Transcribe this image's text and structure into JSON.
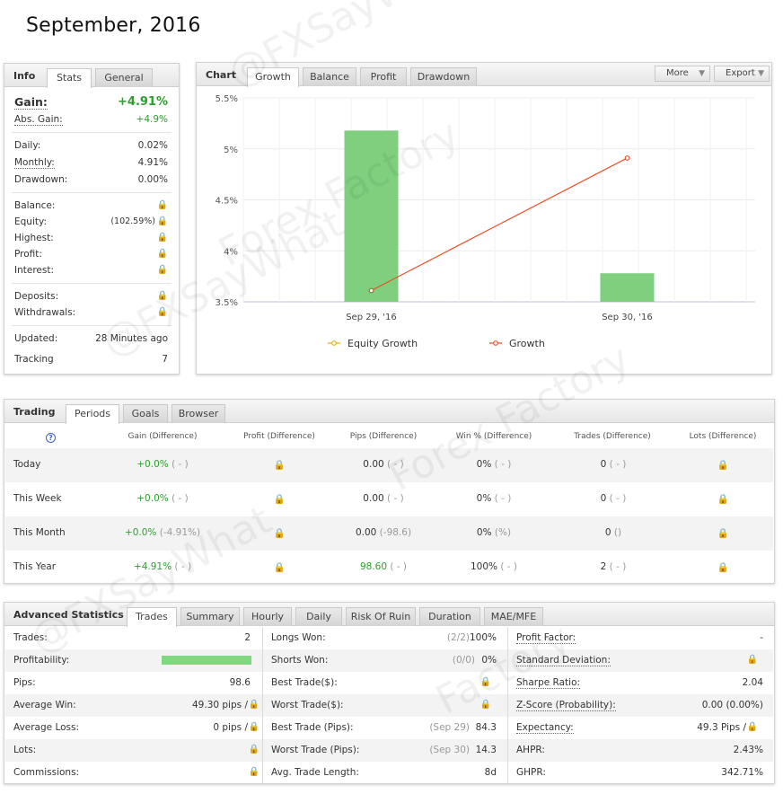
{
  "page_title": "September, 2016",
  "info": {
    "title": "Info",
    "tabs": [
      "Stats",
      "General"
    ],
    "gain_label": "Gain:",
    "gain_value": "+4.91%",
    "abs_gain_label": "Abs. Gain:",
    "abs_gain_value": "+4.9%",
    "daily_label": "Daily:",
    "daily_value": "0.02%",
    "monthly_label": "Monthly:",
    "monthly_value": "4.91%",
    "drawdown_label": "Drawdown:",
    "drawdown_value": "0.00%",
    "balance_label": "Balance:",
    "equity_label": "Equity:",
    "equity_value": "(102.59%)",
    "highest_label": "Highest:",
    "profit_label": "Profit:",
    "interest_label": "Interest:",
    "deposits_label": "Deposits:",
    "withdrawals_label": "Withdrawals:",
    "updated_label": "Updated:",
    "updated_value": "28 Minutes ago",
    "tracking_label": "Tracking",
    "tracking_value": "7"
  },
  "chart_panel": {
    "title": "Chart",
    "tabs": [
      "Growth",
      "Balance",
      "Profit",
      "Drawdown"
    ],
    "more_label": "More",
    "export_label": "Export"
  },
  "chart_data": {
    "type": "bar",
    "categories": [
      "Sep 29, '16",
      "Sep 30, '16"
    ],
    "series": [
      {
        "name": "Equity Growth",
        "type": "bar",
        "values": [
          5.18,
          3.78
        ],
        "color": "#7fcf7f"
      },
      {
        "name": "Growth",
        "type": "line",
        "values": [
          3.61,
          4.91
        ],
        "color": "#e8502a"
      }
    ],
    "y_ticks": [
      "3.5%",
      "4%",
      "4.5%",
      "5%",
      "5.5%"
    ],
    "y_tick_values": [
      3.5,
      4,
      4.5,
      5,
      5.5
    ],
    "ylim": [
      3.5,
      5.5
    ],
    "grid": true,
    "legend_position": "bottom"
  },
  "trading": {
    "title": "Trading",
    "tabs": [
      "Periods",
      "Goals",
      "Browser"
    ],
    "help_icon": "?",
    "headers": [
      "Gain (Difference)",
      "Profit (Difference)",
      "Pips (Difference)",
      "Win % (Difference)",
      "Trades (Difference)",
      "Lots (Difference)"
    ],
    "rows": [
      {
        "period": "Today",
        "gain": "+0.0%",
        "gain_diff": "( - )",
        "pips": "0.00",
        "pips_diff": "( - )",
        "win": "0%",
        "win_diff": "( - )",
        "trades": "0",
        "trades_diff": "( - )"
      },
      {
        "period": "This Week",
        "gain": "+0.0%",
        "gain_diff": "( - )",
        "pips": "0.00",
        "pips_diff": "( - )",
        "win": "0%",
        "win_diff": "( - )",
        "trades": "0",
        "trades_diff": "( - )"
      },
      {
        "period": "This Month",
        "gain": "+0.0%",
        "gain_diff": "(-4.91%)",
        "pips": "0.00",
        "pips_diff": "(-98.6)",
        "win": "0%",
        "win_diff": "(%)",
        "trades": "0",
        "trades_diff": "()"
      },
      {
        "period": "This Year",
        "gain": "+4.91%",
        "gain_diff": "( - )",
        "pips": "98.60",
        "pips_diff": "( - )",
        "win": "100%",
        "win_diff": "( - )",
        "trades": "2",
        "trades_diff": "( - )"
      }
    ]
  },
  "advanced": {
    "title": "Advanced Statistics",
    "tabs": [
      "Trades",
      "Summary",
      "Hourly",
      "Daily",
      "Risk Of Ruin",
      "Duration",
      "MAE/MFE"
    ],
    "profitability": 1.0,
    "col1": [
      {
        "label": "Trades:",
        "value": "2"
      },
      {
        "label": "Profitability:",
        "value": ""
      },
      {
        "label": "Pips:",
        "value": "98.6"
      },
      {
        "label": "Average Win:",
        "value": "49.30 pips /"
      },
      {
        "label": "Average Loss:",
        "value": "0 pips /"
      },
      {
        "label": "Lots:",
        "value": ""
      },
      {
        "label": "Commissions:",
        "value": ""
      }
    ],
    "col2": [
      {
        "label": "Longs Won:",
        "note": "(2/2)",
        "value": "100%"
      },
      {
        "label": "Shorts Won:",
        "note": "(0/0)",
        "value": "0%"
      },
      {
        "label": "Best Trade($):",
        "note": "",
        "value": ""
      },
      {
        "label": "Worst Trade($):",
        "note": "",
        "value": ""
      },
      {
        "label": "Best Trade (Pips):",
        "note": "(Sep 29)",
        "value": "84.3"
      },
      {
        "label": "Worst Trade (Pips):",
        "note": "(Sep 30)",
        "value": "14.3"
      },
      {
        "label": "Avg. Trade Length:",
        "note": "",
        "value": "8d"
      }
    ],
    "col3": [
      {
        "label": "Profit Factor:",
        "value": "-"
      },
      {
        "label": "Standard Deviation:",
        "value": ""
      },
      {
        "label": "Sharpe Ratio:",
        "value": "2.04"
      },
      {
        "label": "Z-Score (Probability):",
        "value": "0.00 (0.00%)"
      },
      {
        "label": "Expectancy:",
        "value": "49.3 Pips /"
      },
      {
        "label": "AHPR:",
        "value": "2.43%"
      },
      {
        "label": "GHPR:",
        "value": "342.71%"
      }
    ]
  },
  "lock_glyph": "🔒"
}
